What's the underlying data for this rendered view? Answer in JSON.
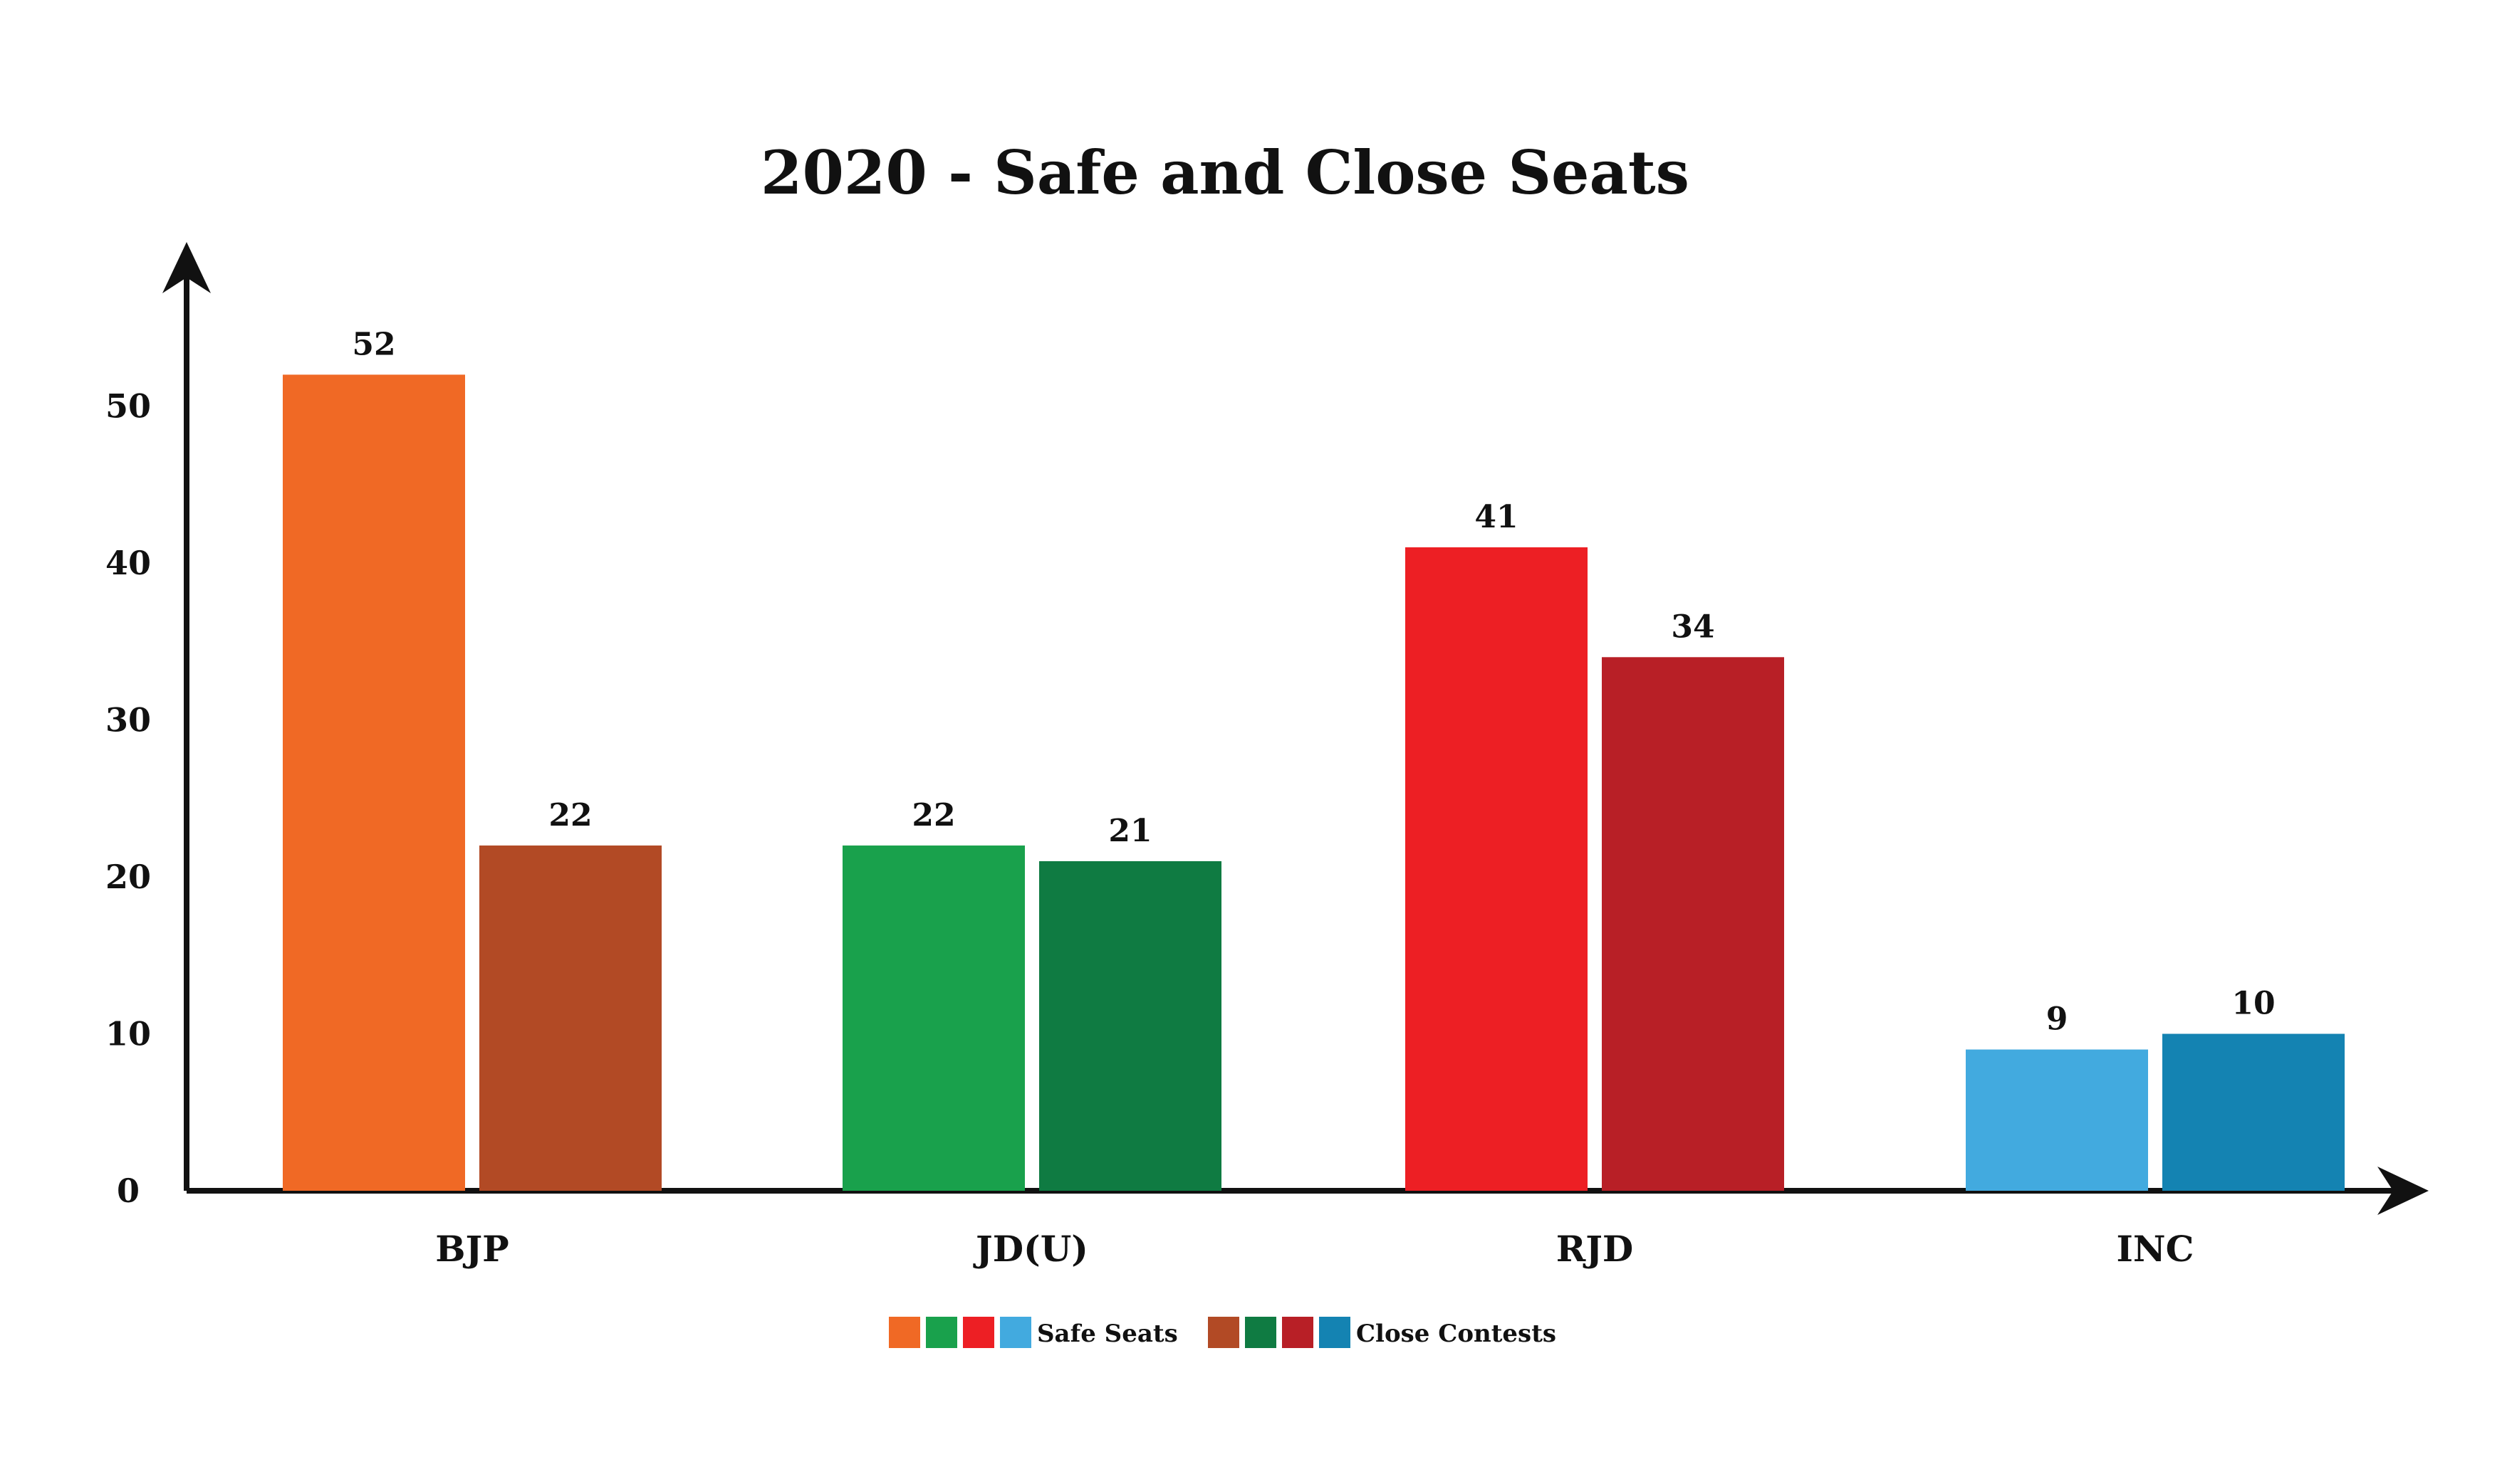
{
  "chart_data": {
    "type": "bar",
    "title": "2020 - Safe and Close Seats",
    "xlabel": "",
    "ylabel": "",
    "categories": [
      "BJP",
      "JD(U)",
      "RJD",
      "INC"
    ],
    "series": [
      {
        "name": "Safe Seats",
        "values": [
          52,
          22,
          41,
          9
        ]
      },
      {
        "name": "Close Contests",
        "values": [
          22,
          21,
          34,
          10
        ]
      }
    ],
    "data_labels": [
      [
        "52",
        "22",
        "41",
        "9"
      ],
      [
        "22",
        "21",
        "34",
        "10"
      ]
    ],
    "yticks": [
      0,
      10,
      20,
      30,
      40,
      50
    ],
    "ylim": [
      0,
      60
    ],
    "grid": false,
    "legend_position": "bottom-center",
    "colors": {
      "safe": [
        "#F06925",
        "#19A14C",
        "#ED1F24",
        "#42AADF"
      ],
      "close": [
        "#B24A25",
        "#0F7B42",
        "#B81F26",
        "#1483B2"
      ],
      "axis": "#111111"
    }
  }
}
